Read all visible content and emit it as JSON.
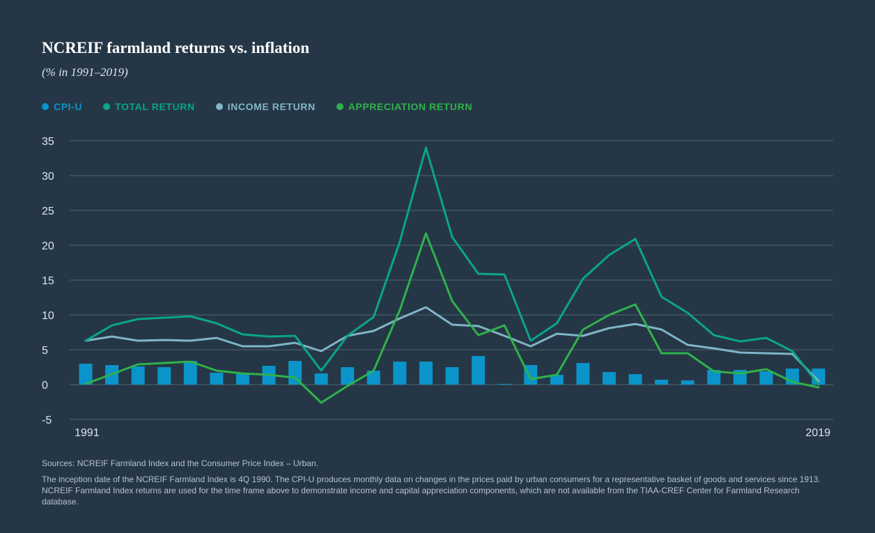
{
  "title": "NCREIF farmland returns vs. inflation",
  "subtitle": "(% in 1991–2019)",
  "colors": {
    "background": "#253746",
    "cpi": "#0b94c9",
    "total": "#0aa58c",
    "income": "#7fb6c8",
    "appreciation": "#2fb24c",
    "grid": "#4f6473",
    "axis_text": "#dde5ec"
  },
  "legend": [
    {
      "label": "CPI-U",
      "color": "#0b94c9"
    },
    {
      "label": "TOTAL RETURN",
      "color": "#0aa58c"
    },
    {
      "label": "INCOME RETURN",
      "color": "#7fb6c8"
    },
    {
      "label": "APPRECIATION RETURN",
      "color": "#2fb24c"
    }
  ],
  "chart_data": {
    "type": "bar+line",
    "title": "NCREIF farmland returns vs. inflation",
    "subtitle": "(% in 1991–2019)",
    "x_start_label": "1991",
    "x_end_label": "2019",
    "x": [
      1991,
      1992,
      1993,
      1994,
      1995,
      1996,
      1997,
      1998,
      1999,
      2000,
      2001,
      2002,
      2003,
      2004,
      2005,
      2006,
      2007,
      2008,
      2009,
      2010,
      2011,
      2012,
      2013,
      2014,
      2015,
      2016,
      2017,
      2018,
      2019
    ],
    "ylim": [
      -5,
      35
    ],
    "yticks": [
      "35",
      "30",
      "25",
      "20",
      "15",
      "10",
      "5",
      "0",
      "-5"
    ],
    "grid": true,
    "series": [
      {
        "name": "CPI-U",
        "kind": "bar",
        "color": "#0b94c9",
        "values": [
          3.0,
          2.8,
          2.6,
          2.5,
          3.4,
          1.7,
          1.6,
          2.7,
          3.4,
          1.6,
          2.5,
          2.0,
          3.3,
          3.3,
          2.5,
          4.1,
          0.1,
          2.8,
          1.4,
          3.1,
          1.8,
          1.5,
          0.7,
          0.6,
          2.1,
          2.1,
          1.9,
          2.3,
          2.3
        ]
      },
      {
        "name": "TOTAL RETURN",
        "kind": "line",
        "color": "#0aa58c",
        "values": [
          6.3,
          8.5,
          9.4,
          9.6,
          9.8,
          8.8,
          7.2,
          6.9,
          7.0,
          2.0,
          7.0,
          9.7,
          20.5,
          34.0,
          21.2,
          15.9,
          15.8,
          6.3,
          8.8,
          15.2,
          18.6,
          20.9,
          12.6,
          10.3,
          7.1,
          6.2,
          6.7,
          4.8,
          0.0
        ]
      },
      {
        "name": "INCOME RETURN",
        "kind": "line",
        "color": "#7fb6c8",
        "values": [
          6.3,
          6.9,
          6.3,
          6.4,
          6.3,
          6.7,
          5.5,
          5.5,
          6.0,
          4.8,
          7.0,
          7.7,
          9.5,
          11.1,
          8.6,
          8.4,
          7.0,
          5.5,
          7.3,
          7.0,
          8.1,
          8.7,
          7.9,
          5.7,
          5.2,
          4.6,
          4.5,
          4.4,
          0.5
        ]
      },
      {
        "name": "APPRECIATION RETURN",
        "kind": "line",
        "color": "#2fb24c",
        "values": [
          0.1,
          1.5,
          2.9,
          3.1,
          3.3,
          2.0,
          1.6,
          1.4,
          1.0,
          -2.6,
          -0.2,
          2.0,
          10.7,
          21.7,
          12.0,
          7.1,
          8.5,
          0.8,
          1.4,
          7.9,
          10.0,
          11.5,
          4.5,
          4.5,
          1.9,
          1.6,
          2.2,
          0.4,
          -0.4
        ]
      }
    ]
  },
  "footnotes": {
    "sources": "Sources: NCREIF Farmland Index and the Consumer Price Index – Urban.",
    "note": "The inception date of the NCREIF Farmland Index is 4Q 1990. The CPI-U produces monthly data on changes in the prices paid by urban consumers for a representative basket of goods and services since 1913. NCREIF Farmland Index returns are used for the time frame above to demonstrate income and capital appreciation components, which are not available from the TIAA-CREF Center for Farmland Research database."
  }
}
